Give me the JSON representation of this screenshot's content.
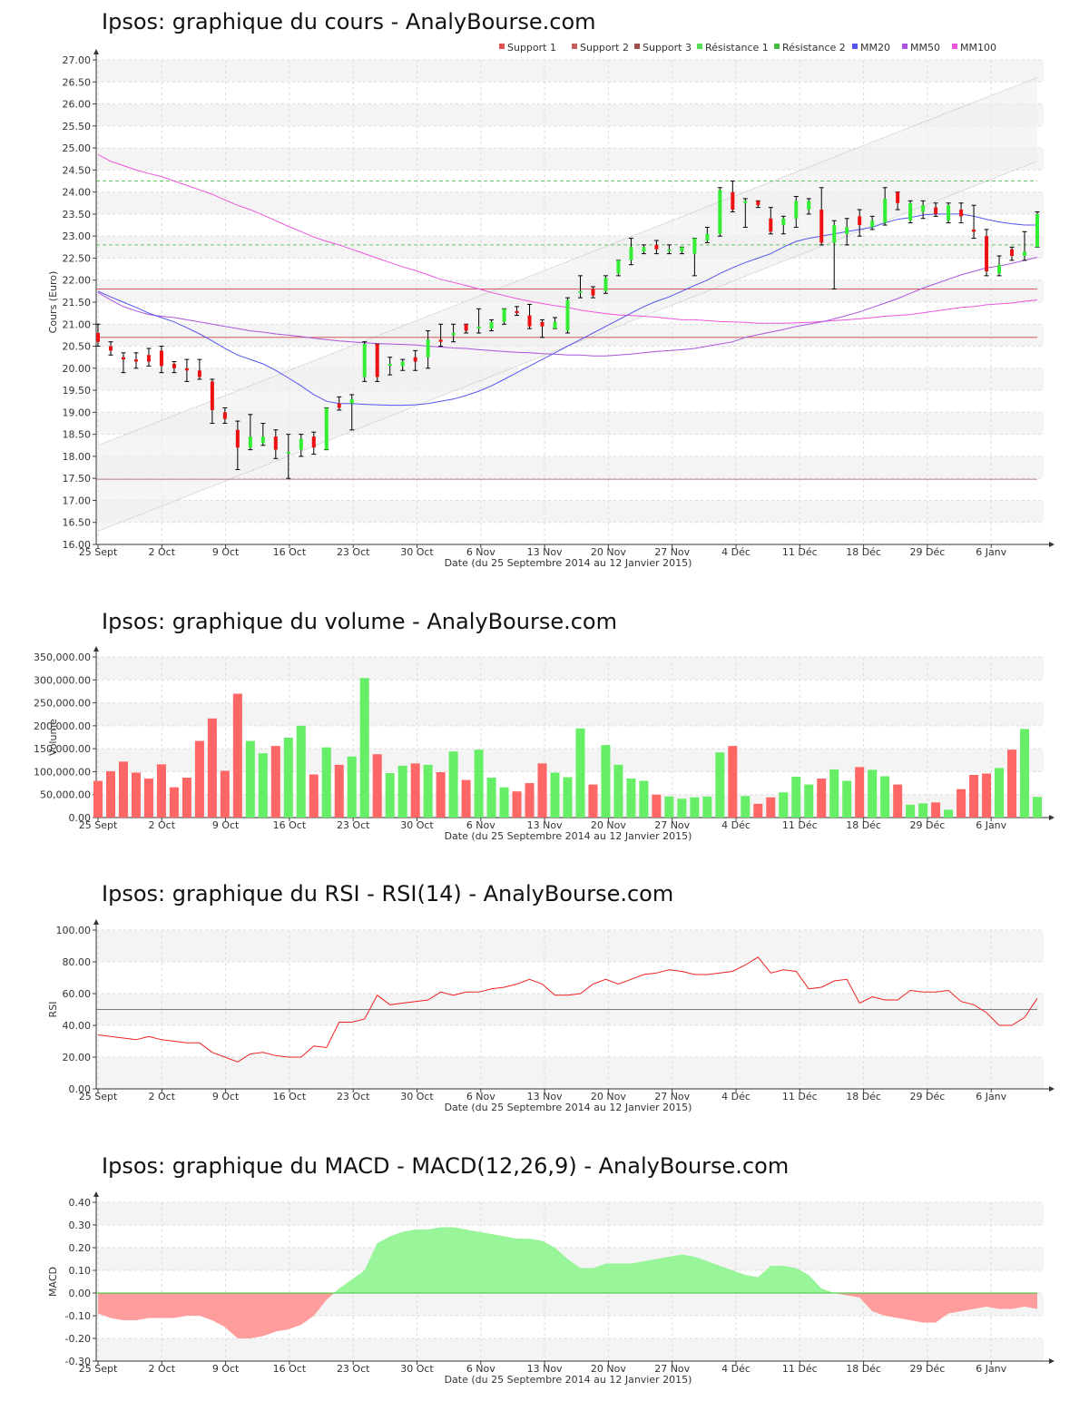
{
  "chart_data": [
    {
      "type": "candlestick",
      "title": "Ipsos: graphique du cours - AnalyBourse.com",
      "ylabel": "Cours (Euro)",
      "xlabel": "Date (du 25 Septembre 2014 au 12 Janvier 2015)",
      "ylim": [
        16.0,
        27.0
      ],
      "yticks": [
        "27.00",
        "26.50",
        "26.00",
        "25.50",
        "25.00",
        "24.50",
        "24.00",
        "23.50",
        "23.00",
        "22.50",
        "22.00",
        "21.50",
        "21.00",
        "20.50",
        "20.00",
        "19.50",
        "19.00",
        "18.50",
        "18.00",
        "17.50",
        "17.00",
        "16.50",
        "16.00"
      ],
      "xticks": [
        "25 Sept",
        "2 Oct",
        "9 Oct",
        "16 Oct",
        "23 Oct",
        "30 Oct",
        "6 Nov",
        "13 Nov",
        "20 Nov",
        "27 Nov",
        "4 Déc",
        "11 Déc",
        "18 Déc",
        "29 Déc",
        "6 Janv"
      ],
      "legend": [
        {
          "name": "Support 1",
          "color": "#e05050"
        },
        {
          "name": "Support 2",
          "color": "#c06060"
        },
        {
          "name": "Support 3",
          "color": "#a05050"
        },
        {
          "name": "Résistance 1",
          "color": "#55dd55"
        },
        {
          "name": "Résistance 2",
          "color": "#44bb44"
        },
        {
          "name": "MM20",
          "color": "#5555ee"
        },
        {
          "name": "MM50",
          "color": "#aa55dd"
        },
        {
          "name": "MM100",
          "color": "#ee55dd"
        }
      ],
      "levels": {
        "support1": 20.7,
        "support2": 21.8,
        "support3": 17.48,
        "resistance1": 22.8,
        "resistance2": 24.25
      },
      "candles": [
        [
          20.8,
          20.6,
          21.0,
          20.5
        ],
        [
          20.5,
          20.4,
          20.6,
          20.3
        ],
        [
          20.25,
          20.2,
          20.35,
          19.9
        ],
        [
          20.2,
          20.15,
          20.35,
          20.0
        ],
        [
          20.3,
          20.15,
          20.45,
          20.05
        ],
        [
          20.4,
          20.05,
          20.5,
          19.9
        ],
        [
          20.1,
          20.0,
          20.15,
          19.9
        ],
        [
          20.0,
          19.95,
          20.2,
          19.7
        ],
        [
          19.95,
          19.8,
          20.2,
          19.75
        ],
        [
          19.7,
          19.05,
          19.75,
          18.75
        ],
        [
          19.0,
          18.85,
          19.1,
          18.75
        ],
        [
          18.6,
          18.2,
          18.8,
          17.7
        ],
        [
          18.2,
          18.45,
          18.95,
          18.15
        ],
        [
          18.3,
          18.45,
          18.75,
          18.25
        ],
        [
          18.45,
          18.15,
          18.6,
          17.95
        ],
        [
          18.1,
          18.1,
          18.5,
          17.5
        ],
        [
          18.15,
          18.4,
          18.5,
          18.0
        ],
        [
          18.45,
          18.2,
          18.55,
          18.05
        ],
        [
          18.15,
          19.1,
          19.1,
          18.15
        ],
        [
          19.2,
          19.1,
          19.35,
          19.05
        ],
        [
          19.2,
          19.3,
          19.4,
          18.6
        ],
        [
          19.8,
          20.55,
          20.6,
          19.7
        ],
        [
          20.55,
          19.8,
          20.55,
          19.7
        ],
        [
          20.1,
          20.1,
          20.25,
          19.85
        ],
        [
          20.05,
          20.15,
          20.2,
          19.95
        ],
        [
          20.25,
          20.15,
          20.4,
          19.95
        ],
        [
          20.25,
          20.65,
          20.85,
          20.0
        ],
        [
          20.65,
          20.6,
          21.0,
          20.5
        ],
        [
          20.75,
          20.8,
          21.0,
          20.6
        ],
        [
          21.0,
          20.85,
          21.0,
          20.8
        ],
        [
          20.9,
          20.95,
          21.35,
          20.8
        ],
        [
          20.9,
          21.05,
          21.1,
          20.85
        ],
        [
          21.05,
          21.35,
          21.35,
          21.0
        ],
        [
          21.3,
          21.25,
          21.4,
          21.2
        ],
        [
          21.2,
          20.95,
          21.45,
          20.9
        ],
        [
          21.05,
          20.95,
          21.1,
          20.7
        ],
        [
          20.9,
          21.05,
          21.15,
          20.9
        ],
        [
          20.85,
          21.55,
          21.6,
          20.8
        ],
        [
          21.75,
          21.75,
          22.1,
          21.6
        ],
        [
          21.8,
          21.65,
          21.85,
          21.6
        ],
        [
          21.75,
          22.05,
          22.1,
          21.7
        ],
        [
          22.15,
          22.45,
          22.45,
          22.1
        ],
        [
          22.45,
          22.75,
          22.95,
          22.35
        ],
        [
          22.65,
          22.75,
          22.8,
          22.6
        ],
        [
          22.8,
          22.7,
          22.9,
          22.6
        ],
        [
          22.7,
          22.7,
          22.8,
          22.6
        ],
        [
          22.65,
          22.75,
          22.75,
          22.6
        ],
        [
          22.6,
          22.95,
          22.95,
          22.1
        ],
        [
          22.9,
          23.05,
          23.2,
          22.85
        ],
        [
          23.05,
          24.05,
          24.1,
          23.0
        ],
        [
          24.0,
          23.6,
          24.25,
          23.55
        ],
        [
          23.75,
          23.8,
          23.85,
          23.2
        ],
        [
          23.8,
          23.7,
          23.8,
          23.65
        ],
        [
          23.4,
          23.1,
          23.65,
          23.05
        ],
        [
          23.25,
          23.4,
          23.45,
          23.05
        ],
        [
          23.4,
          23.8,
          23.9,
          23.2
        ],
        [
          23.6,
          23.8,
          23.85,
          23.5
        ],
        [
          23.6,
          22.85,
          24.1,
          22.8
        ],
        [
          22.85,
          23.25,
          23.35,
          21.8
        ],
        [
          23.05,
          23.2,
          23.4,
          22.8
        ],
        [
          23.45,
          23.25,
          23.6,
          23.0
        ],
        [
          23.2,
          23.35,
          23.45,
          23.15
        ],
        [
          23.3,
          23.85,
          24.1,
          23.25
        ],
        [
          24.0,
          23.75,
          24.0,
          23.6
        ],
        [
          23.35,
          23.75,
          23.8,
          23.3
        ],
        [
          23.55,
          23.7,
          23.8,
          23.4
        ],
        [
          23.65,
          23.5,
          23.75,
          23.45
        ],
        [
          23.35,
          23.7,
          23.75,
          23.3
        ],
        [
          23.6,
          23.45,
          23.75,
          23.3
        ],
        [
          23.15,
          23.1,
          23.7,
          22.95
        ],
        [
          23.0,
          22.2,
          23.15,
          22.1
        ],
        [
          22.15,
          22.35,
          22.55,
          22.1
        ],
        [
          22.7,
          22.55,
          22.75,
          22.45
        ],
        [
          22.55,
          22.65,
          23.1,
          22.45
        ],
        [
          22.75,
          23.5,
          23.55,
          22.75
        ]
      ],
      "mm20": [
        21.75,
        21.62,
        21.5,
        21.38,
        21.25,
        21.15,
        21.05,
        20.92,
        20.78,
        20.62,
        20.45,
        20.3,
        20.2,
        20.1,
        19.95,
        19.78,
        19.6,
        19.4,
        19.25,
        19.2,
        19.2,
        19.18,
        19.17,
        19.16,
        19.16,
        19.17,
        19.2,
        19.25,
        19.3,
        19.38,
        19.48,
        19.6,
        19.75,
        19.9,
        20.05,
        20.2,
        20.35,
        20.5,
        20.65,
        20.8,
        20.95,
        21.1,
        21.25,
        21.4,
        21.52,
        21.62,
        21.75,
        21.88,
        22.0,
        22.15,
        22.28,
        22.4,
        22.5,
        22.6,
        22.75,
        22.88,
        22.95,
        23.0,
        23.05,
        23.1,
        23.15,
        23.2,
        23.3,
        23.38,
        23.42,
        23.48,
        23.5,
        23.5,
        23.5,
        23.45,
        23.38,
        23.32,
        23.28,
        23.25,
        23.25
      ],
      "mm50": [
        21.72,
        21.55,
        21.4,
        21.3,
        21.22,
        21.18,
        21.15,
        21.1,
        21.05,
        21.0,
        20.95,
        20.9,
        20.85,
        20.82,
        20.78,
        20.75,
        20.72,
        20.68,
        20.65,
        20.62,
        20.6,
        20.58,
        20.56,
        20.55,
        20.54,
        20.53,
        20.5,
        20.48,
        20.46,
        20.45,
        20.42,
        20.4,
        20.38,
        20.36,
        20.35,
        20.33,
        20.32,
        20.3,
        20.3,
        20.28,
        20.28,
        20.3,
        20.32,
        20.35,
        20.38,
        20.4,
        20.42,
        20.45,
        20.5,
        20.55,
        20.6,
        20.7,
        20.76,
        20.82,
        20.88,
        20.95,
        21.0,
        21.05,
        21.12,
        21.2,
        21.28,
        21.38,
        21.48,
        21.58,
        21.7,
        21.82,
        21.92,
        22.02,
        22.12,
        22.2,
        22.28,
        22.32,
        22.38,
        22.45,
        22.52
      ],
      "mm100": [
        24.85,
        24.7,
        24.6,
        24.5,
        24.42,
        24.35,
        24.25,
        24.15,
        24.05,
        23.95,
        23.82,
        23.7,
        23.6,
        23.48,
        23.35,
        23.22,
        23.1,
        22.98,
        22.88,
        22.8,
        22.7,
        22.6,
        22.5,
        22.4,
        22.3,
        22.22,
        22.12,
        22.02,
        21.95,
        21.88,
        21.8,
        21.72,
        21.65,
        21.58,
        21.52,
        21.47,
        21.42,
        21.38,
        21.32,
        21.28,
        21.24,
        21.21,
        21.2,
        21.18,
        21.16,
        21.13,
        21.1,
        21.1,
        21.08,
        21.06,
        21.05,
        21.04,
        21.02,
        21.02,
        21.02,
        21.03,
        21.04,
        21.06,
        21.08,
        21.1,
        21.12,
        21.15,
        21.18,
        21.2,
        21.22,
        21.26,
        21.3,
        21.34,
        21.38,
        21.4,
        21.44,
        21.46,
        21.48,
        21.52,
        21.55
      ]
    },
    {
      "type": "bar",
      "title": "Ipsos: graphique du volume - AnalyBourse.com",
      "ylabel": "Volume",
      "xlabel": "Date (du 25 Septembre 2014 au 12 Janvier 2015)",
      "ylim": [
        0,
        350000
      ],
      "yticks": [
        "350,000.00",
        "300,000.00",
        "250,000.00",
        "200,000.00",
        "150,000.00",
        "100,000.00",
        "50,000.00",
        "0.00"
      ],
      "xticks": [
        "25 Sept",
        "2 Oct",
        "9 Oct",
        "16 Oct",
        "23 Oct",
        "30 Oct",
        "6 Nov",
        "13 Nov",
        "20 Nov",
        "27 Nov",
        "4 Déc",
        "11 Déc",
        "18 Déc",
        "29 Déc",
        "6 Janv"
      ],
      "values": [
        80000,
        101000,
        122000,
        98000,
        85000,
        116000,
        66000,
        87000,
        167000,
        216000,
        102000,
        270000,
        167000,
        140000,
        156000,
        174000,
        200000,
        94000,
        153000,
        115000,
        133000,
        304000,
        138000,
        97000,
        113000,
        118000,
        115000,
        99000,
        144000,
        82000,
        148000,
        87000,
        66000,
        57000,
        75000,
        118000,
        98000,
        88000,
        194000,
        72000,
        158000,
        115000,
        85000,
        80000,
        50000,
        46000,
        41000,
        44000,
        46000,
        142000,
        156000,
        47000,
        30000,
        44000,
        55000,
        89000,
        72000,
        85000,
        105000,
        80000,
        110000,
        104000,
        90000,
        72000,
        28000,
        31000,
        33000,
        17000,
        62000,
        93000,
        96000,
        108000,
        148000,
        193000,
        45000
      ],
      "colors_up_down": [
        "#ff6666",
        "#66ee66"
      ]
    },
    {
      "type": "line",
      "title": "Ipsos: graphique du RSI - RSI(14) - AnalyBourse.com",
      "ylabel": "RSI",
      "xlabel": "Date (du 25 Septembre 2014 au 12 Janvier 2015)",
      "ylim": [
        0,
        100
      ],
      "yticks": [
        "100.00",
        "80.00",
        "60.00",
        "40.00",
        "20.00",
        "0.00"
      ],
      "xticks": [
        "25 Sept",
        "2 Oct",
        "9 Oct",
        "16 Oct",
        "23 Oct",
        "30 Oct",
        "6 Nov",
        "13 Nov",
        "20 Nov",
        "27 Nov",
        "4 Déc",
        "11 Déc",
        "18 Déc",
        "29 Déc",
        "6 Janv"
      ],
      "reference": 50,
      "values": [
        34,
        33,
        32,
        31,
        33,
        31,
        30,
        29,
        29,
        23,
        20,
        17,
        22,
        23,
        21,
        20,
        20,
        27,
        26,
        42,
        42,
        44,
        59,
        53,
        54,
        55,
        56,
        61,
        59,
        61,
        61,
        63,
        64,
        66,
        69,
        66,
        59,
        59,
        60,
        66,
        69,
        66,
        69,
        72,
        73,
        75,
        74,
        72,
        72,
        73,
        74,
        78,
        83,
        73,
        75,
        74,
        63,
        64,
        68,
        69,
        54,
        58,
        56,
        56,
        62,
        61,
        61,
        62,
        55,
        53,
        48,
        40,
        40,
        45,
        57
      ]
    },
    {
      "type": "area",
      "title": "Ipsos: graphique du MACD - MACD(12,26,9) - AnalyBourse.com",
      "ylabel": "MACD",
      "xlabel": "Date (du 25 Septembre 2014 au 12 Janvier 2015)",
      "ylim": [
        -0.3,
        0.4
      ],
      "yticks": [
        "0.40",
        "0.30",
        "0.20",
        "0.10",
        "0.00",
        "-0.10",
        "-0.20",
        "-0.30"
      ],
      "xticks": [
        "25 Sept",
        "2 Oct",
        "9 Oct",
        "16 Oct",
        "23 Oct",
        "30 Oct",
        "6 Nov",
        "13 Nov",
        "20 Nov",
        "27 Nov",
        "4 Déc",
        "11 Déc",
        "18 Déc",
        "29 Déc",
        "6 Janv"
      ],
      "values": [
        -0.09,
        -0.11,
        -0.12,
        -0.12,
        -0.11,
        -0.11,
        -0.11,
        -0.1,
        -0.1,
        -0.12,
        -0.15,
        -0.2,
        -0.2,
        -0.19,
        -0.17,
        -0.16,
        -0.14,
        -0.1,
        -0.03,
        0.02,
        0.06,
        0.1,
        0.22,
        0.25,
        0.27,
        0.28,
        0.28,
        0.29,
        0.29,
        0.28,
        0.27,
        0.26,
        0.25,
        0.24,
        0.24,
        0.23,
        0.2,
        0.15,
        0.11,
        0.11,
        0.13,
        0.13,
        0.13,
        0.14,
        0.15,
        0.16,
        0.17,
        0.16,
        0.14,
        0.12,
        0.1,
        0.08,
        0.07,
        0.12,
        0.12,
        0.11,
        0.08,
        0.02,
        0.0,
        -0.01,
        -0.02,
        -0.08,
        -0.1,
        -0.11,
        -0.12,
        -0.13,
        -0.13,
        -0.09,
        -0.08,
        -0.07,
        -0.06,
        -0.07,
        -0.07,
        -0.06,
        -0.07
      ]
    }
  ]
}
